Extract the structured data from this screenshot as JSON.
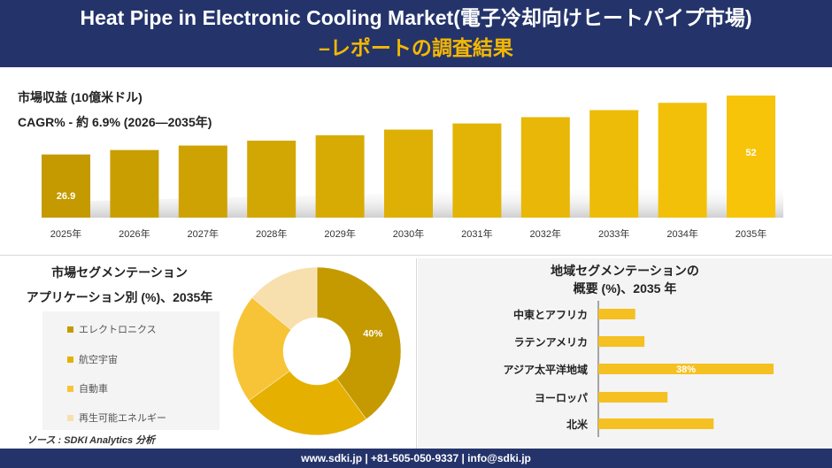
{
  "header": {
    "title_line1": "Heat Pipe in Electronic Cooling Market(電子冷却向けヒートパイプ市場)",
    "title_line2": "–レポートの調査結果"
  },
  "top": {
    "label_revenue": "市場収益 (10億米ドル)",
    "label_cagr": "CAGR% - 約 6.9% (2026—2035年)"
  },
  "left_panel": {
    "title_line1": "市場セグメンテーション",
    "title_line2": "アプリケーション別 (%)、2035年",
    "source": "ソース : SDKI Analytics 分析"
  },
  "right_panel": {
    "title_line1": "地域セグメンテーションの",
    "title_line2": "概要 (%)、2035 年"
  },
  "footer": {
    "text": "www.sdki.jp | +81-505-050-9337 | info@sdki.jp"
  },
  "colors": {
    "navy": "#24346b",
    "gold_dark": "#c49a00",
    "gold": "#e6b000",
    "gold_light": "#f7c437",
    "pale": "#f8dfae",
    "title_yellow": "#f5b800"
  },
  "chart_data": [
    {
      "type": "bar",
      "categories": [
        "2025年",
        "2026年",
        "2027年",
        "2028年",
        "2029年",
        "2030年",
        "2031年",
        "2032年",
        "2033年",
        "2034年",
        "2035年"
      ],
      "values": [
        26.9,
        28.8,
        30.7,
        32.8,
        35.1,
        37.5,
        40.1,
        42.8,
        45.8,
        48.9,
        52
      ],
      "labels": {
        "0": "26.9",
        "10": "52"
      },
      "title": "",
      "xlabel": "",
      "ylabel": ""
    },
    {
      "type": "pie",
      "categories": [
        "エレクトロニクス",
        "航空宇宙",
        "自動車",
        "再生可能エネルギー"
      ],
      "values": [
        40,
        25,
        21,
        14
      ],
      "labels": {
        "0": "40%"
      },
      "colors": [
        "#c49a00",
        "#e6b000",
        "#f7c437",
        "#f8dfae"
      ]
    },
    {
      "type": "bar",
      "orientation": "horizontal",
      "categories": [
        "中東とアフリカ",
        "ラテンアメリカ",
        "アジア太平洋地域",
        "ヨーロッパ",
        "北米"
      ],
      "values": [
        8,
        10,
        38,
        15,
        25
      ],
      "labels": {
        "2": "38%"
      }
    }
  ]
}
